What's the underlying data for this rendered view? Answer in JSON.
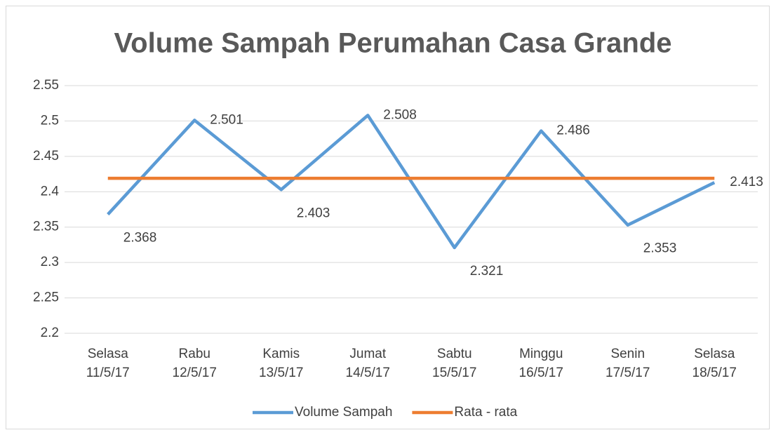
{
  "chart_data": {
    "type": "line",
    "title": "Volume Sampah Perumahan Casa Grande",
    "categories": [
      [
        "Selasa",
        "11/5/17"
      ],
      [
        "Rabu",
        "12/5/17"
      ],
      [
        "Kamis",
        "13/5/17"
      ],
      [
        "Jumat",
        "14/5/17"
      ],
      [
        "Sabtu",
        "15/5/17"
      ],
      [
        "Minggu",
        "16/5/17"
      ],
      [
        "Senin",
        "17/5/17"
      ],
      [
        "Selasa",
        "18/5/17"
      ]
    ],
    "series": [
      {
        "name": "Volume Sampah",
        "color": "#5b9bd5",
        "values": [
          2.368,
          2.501,
          2.403,
          2.508,
          2.321,
          2.486,
          2.353,
          2.413
        ],
        "data_labels": true
      },
      {
        "name": "Rata - rata",
        "color": "#ed7d31",
        "values": [
          2.419,
          2.419,
          2.419,
          2.419,
          2.419,
          2.419,
          2.419,
          2.419
        ]
      }
    ],
    "ylim": [
      2.2,
      2.55
    ],
    "yticks": [
      2.2,
      2.25,
      2.3,
      2.35,
      2.4,
      2.45,
      2.5,
      2.55
    ],
    "grid": true,
    "legend": "bottom"
  }
}
